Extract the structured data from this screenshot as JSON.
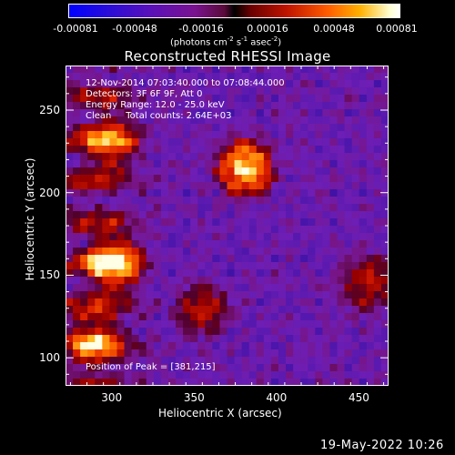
{
  "colorbar": {
    "ticks": [
      "-0.00081",
      "-0.00048",
      "-0.00016",
      "0.00016",
      "0.00048",
      "0.00081"
    ],
    "units_base": "(photons cm",
    "units_exp1": "-2",
    "units_mid1": " s",
    "units_exp2": "-1",
    "units_mid2": " asec",
    "units_exp3": "-2",
    "units_end": ")"
  },
  "annotations": {
    "time_range": "12-Nov-2014 07:03:40.000 to 07:08:44.000",
    "detectors": "Detectors: 3F 6F 9F, Att 0",
    "energy": "Energy Range: 12.0 - 25.0 keV",
    "clean": "Clean     Total counts: 2.64E+03",
    "peak": "Position of Peak = [381,215]"
  },
  "footer": {
    "date": "19-May-2022 10:26"
  },
  "colors": {
    "axis": "#ffffff",
    "background": "#000000"
  },
  "chart_data": {
    "type": "heatmap",
    "title": "Reconstructed RHESSI Image",
    "xlabel": "Heliocentric X (arcsec)",
    "ylabel": "Heliocentric Y (arcsec)",
    "xlim": [
      272,
      468
    ],
    "ylim": [
      83,
      277
    ],
    "xticks": [
      300,
      350,
      400,
      450
    ],
    "yticks": [
      100,
      150,
      200,
      250
    ],
    "xtick_labels": [
      "300",
      "350",
      "400",
      "450"
    ],
    "ytick_labels": [
      "100",
      "150",
      "200",
      "250"
    ],
    "colorbar_range": [
      -0.00081,
      0.00081
    ],
    "colormap": "blue-purple-red-yellow-white",
    "peak": [
      381,
      215
    ],
    "sources": [
      {
        "x": 381,
        "y": 215,
        "peak": 1.0
      },
      {
        "x": 302,
        "y": 157,
        "peak": 0.85
      },
      {
        "x": 300,
        "y": 230,
        "peak": 0.55
      },
      {
        "x": 290,
        "y": 110,
        "peak": 0.55
      },
      {
        "x": 455,
        "y": 145,
        "peak": 0.5
      },
      {
        "x": 355,
        "y": 130,
        "peak": 0.45
      }
    ]
  }
}
